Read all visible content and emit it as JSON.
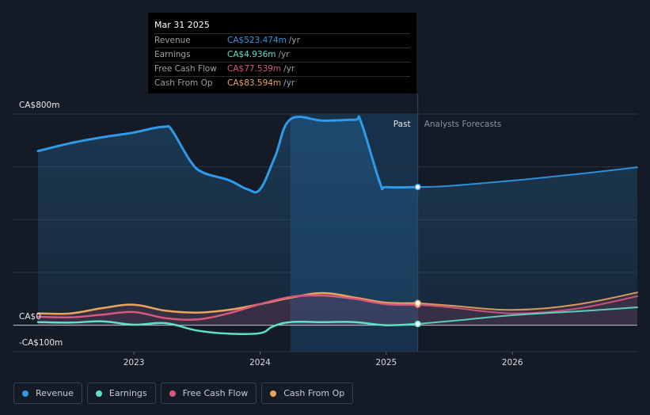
{
  "colors": {
    "revenue": "#2f9ae8",
    "earnings": "#5fe0c8",
    "free_cash_flow": "#d9577f",
    "cash_from_op": "#e9a65a"
  },
  "tooltip": {
    "date": "Mar 31 2025",
    "rows": [
      {
        "label": "Revenue",
        "value": "CA$523.474m",
        "unit": "/yr"
      },
      {
        "label": "Earnings",
        "value": "CA$4.936m",
        "unit": "/yr"
      },
      {
        "label": "Free Cash Flow",
        "value": "CA$77.539m",
        "unit": "/yr"
      },
      {
        "label": "Cash From Op",
        "value": "CA$83.594m",
        "unit": "/yr"
      }
    ]
  },
  "legend": [
    {
      "label": "Revenue",
      "icon": "revenue-dot-icon"
    },
    {
      "label": "Earnings",
      "icon": "earnings-dot-icon"
    },
    {
      "label": "Free Cash Flow",
      "icon": "free-cash-flow-dot-icon"
    },
    {
      "label": "Cash From Op",
      "icon": "cash-from-op-dot-icon"
    }
  ],
  "chart_data": {
    "type": "line",
    "title": "",
    "unit": "CA$m",
    "ylim": [
      -100,
      800
    ],
    "xlim": [
      2022.24,
      2026.99
    ],
    "y_ticks": [
      {
        "value": 800,
        "label": "CA$800m"
      },
      {
        "value": 0,
        "label": "CA$0"
      },
      {
        "value": -100,
        "label": "-CA$100m"
      }
    ],
    "x_ticks": [
      {
        "value": 2023,
        "label": "2023"
      },
      {
        "value": 2024,
        "label": "2024"
      },
      {
        "value": 2025,
        "label": "2025"
      },
      {
        "value": 2026,
        "label": "2026"
      }
    ],
    "past_label": "Past",
    "forecast_label": "Analysts Forecasts",
    "divider_x": 2025.25,
    "highlight_range": [
      2024.24,
      2025.25
    ],
    "marker_x": 2025.25,
    "series": [
      {
        "name": "Revenue",
        "key": "revenue",
        "points": [
          [
            2022.24,
            660
          ],
          [
            2022.5,
            690
          ],
          [
            2022.75,
            712
          ],
          [
            2023.0,
            730
          ],
          [
            2023.15,
            746
          ],
          [
            2023.25,
            752
          ],
          [
            2023.3,
            740
          ],
          [
            2023.45,
            620
          ],
          [
            2023.55,
            578
          ],
          [
            2023.75,
            550
          ],
          [
            2023.9,
            515
          ],
          [
            2024.0,
            515
          ],
          [
            2024.12,
            640
          ],
          [
            2024.24,
            780
          ],
          [
            2024.5,
            775
          ],
          [
            2024.75,
            778
          ],
          [
            2024.8,
            770
          ],
          [
            2024.95,
            540
          ],
          [
            2025.0,
            523
          ],
          [
            2025.25,
            523.5
          ]
        ],
        "forecast": [
          [
            2025.25,
            523.5
          ],
          [
            2025.5,
            528
          ],
          [
            2026.0,
            548
          ],
          [
            2026.5,
            572
          ],
          [
            2026.99,
            598
          ]
        ]
      },
      {
        "name": "Earnings",
        "key": "earnings",
        "points": [
          [
            2022.24,
            12
          ],
          [
            2022.5,
            10
          ],
          [
            2022.75,
            15
          ],
          [
            2023.0,
            2
          ],
          [
            2023.25,
            8
          ],
          [
            2023.5,
            -20
          ],
          [
            2023.75,
            -32
          ],
          [
            2024.0,
            -30
          ],
          [
            2024.1,
            -5
          ],
          [
            2024.24,
            12
          ],
          [
            2024.5,
            12
          ],
          [
            2024.75,
            12
          ],
          [
            2025.0,
            0
          ],
          [
            2025.25,
            4.9
          ]
        ],
        "forecast": [
          [
            2025.25,
            4.9
          ],
          [
            2025.6,
            20
          ],
          [
            2026.0,
            38
          ],
          [
            2026.5,
            52
          ],
          [
            2026.99,
            68
          ]
        ]
      },
      {
        "name": "Free Cash Flow",
        "key": "free_cash_flow",
        "points": [
          [
            2022.24,
            32
          ],
          [
            2022.5,
            30
          ],
          [
            2022.75,
            40
          ],
          [
            2023.0,
            50
          ],
          [
            2023.25,
            27
          ],
          [
            2023.5,
            22
          ],
          [
            2023.75,
            45
          ],
          [
            2024.0,
            80
          ],
          [
            2024.25,
            108
          ],
          [
            2024.5,
            112
          ],
          [
            2024.75,
            100
          ],
          [
            2025.0,
            80
          ],
          [
            2025.25,
            77.5
          ]
        ],
        "forecast": [
          [
            2025.25,
            77.5
          ],
          [
            2025.5,
            68
          ],
          [
            2026.0,
            45
          ],
          [
            2026.5,
            62
          ],
          [
            2026.99,
            110
          ]
        ]
      },
      {
        "name": "Cash From Op",
        "key": "cash_from_op",
        "points": [
          [
            2022.24,
            45
          ],
          [
            2022.5,
            45
          ],
          [
            2022.75,
            65
          ],
          [
            2023.0,
            78
          ],
          [
            2023.25,
            55
          ],
          [
            2023.5,
            48
          ],
          [
            2023.75,
            58
          ],
          [
            2024.0,
            80
          ],
          [
            2024.25,
            105
          ],
          [
            2024.5,
            122
          ],
          [
            2024.75,
            105
          ],
          [
            2025.0,
            85
          ],
          [
            2025.25,
            83.6
          ]
        ],
        "forecast": [
          [
            2025.25,
            83.6
          ],
          [
            2025.5,
            75
          ],
          [
            2026.0,
            58
          ],
          [
            2026.5,
            78
          ],
          [
            2026.99,
            124
          ]
        ]
      }
    ]
  }
}
